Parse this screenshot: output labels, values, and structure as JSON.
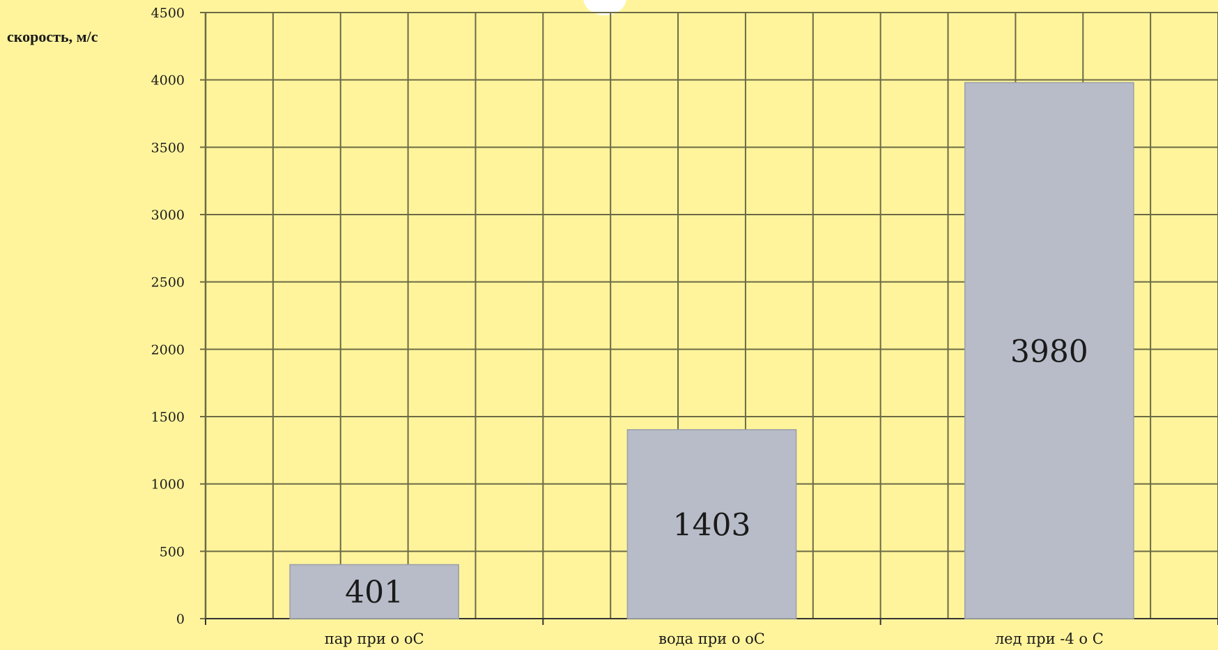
{
  "chart_data": {
    "type": "bar",
    "ylabel": "скорость, м/с",
    "xlabel": "",
    "categories": [
      "пар при о оС",
      "вода при о оС",
      "лед при -4 о С"
    ],
    "values": [
      401,
      1403,
      3980
    ],
    "data_labels": [
      "401",
      "1403",
      "3980"
    ],
    "ylim": [
      0,
      4500
    ],
    "yticks": [
      0,
      500,
      1000,
      1500,
      2000,
      2500,
      3000,
      3500,
      4000,
      4500
    ],
    "ytick_labels": [
      "0",
      "500",
      "1000",
      "1500",
      "2000",
      "2500",
      "3000",
      "3500",
      "4000",
      "4500"
    ],
    "grid": true,
    "legend": "none",
    "colors": {
      "background": "#fff49c",
      "bar_fill": "#b8bcc8",
      "bar_stroke": "#9a9ea8",
      "grid": "#6b6a45",
      "text": "#1a1a1a"
    }
  }
}
